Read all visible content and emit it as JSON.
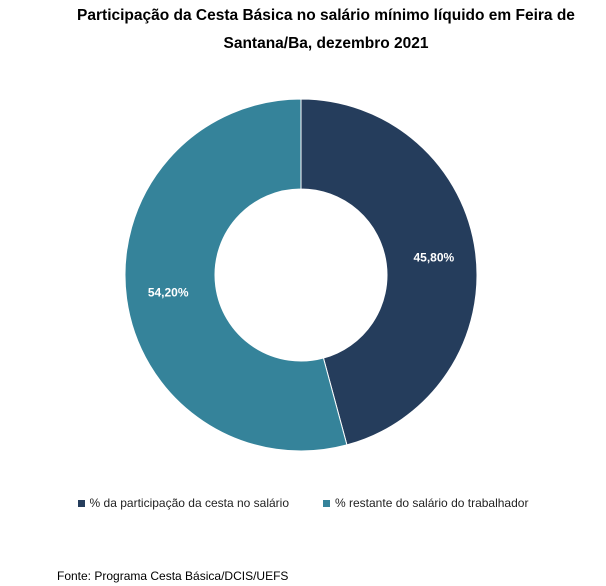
{
  "title_line1": "Participação da Cesta Básica no salário mínimo líquido em Feira de",
  "title_line2": "Santana/Ba, dezembro 2021",
  "chart_data": {
    "type": "pie",
    "donut": true,
    "series": [
      {
        "name": "% da participação da cesta no salário",
        "value": 45.8,
        "label": "45,80%",
        "color": "#253d5c"
      },
      {
        "name": "% restante do salário do trabalhador",
        "value": 54.2,
        "label": "54,20%",
        "color": "#35839a"
      }
    ],
    "legend_position": "bottom"
  },
  "source": "Fonte: Programa Cesta Básica/DCIS/UEFS"
}
